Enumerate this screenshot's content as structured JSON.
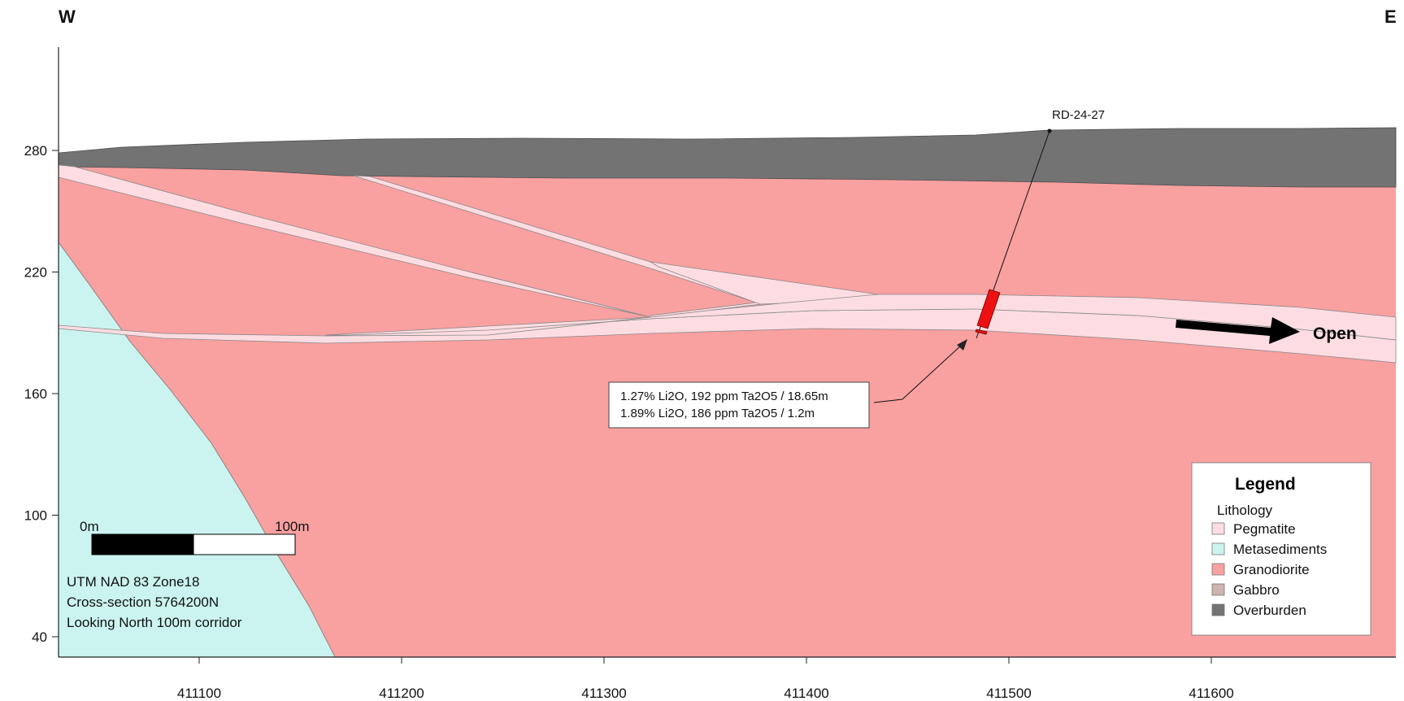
{
  "directions": {
    "west": "W",
    "east": "E"
  },
  "axes": {
    "y_ticks": [
      "280",
      "220",
      "160",
      "100",
      "40"
    ],
    "x_ticks": [
      "411100",
      "411200",
      "411300",
      "411400",
      "411500",
      "411600"
    ]
  },
  "drillhole": {
    "name": "RD-24-27"
  },
  "intercept": {
    "line1": "1.27% Li2O, 192 ppm Ta2O5 / 18.65m",
    "line2": "1.89% Li2O, 186 ppm Ta2O5 / 1.2m"
  },
  "open_label": "Open",
  "scale_bar": {
    "start": "0m",
    "end": "100m"
  },
  "projection": {
    "line1": "UTM NAD 83 Zone18",
    "line2": "Cross-section 5764200N",
    "line3": "Looking North 100m corridor"
  },
  "legend": {
    "title": "Legend",
    "subtitle": "Lithology",
    "items": [
      {
        "label": "Pegmatite",
        "color": "#fddde2"
      },
      {
        "label": "Metasediments",
        "color": "#cbf4f0"
      },
      {
        "label": "Granodiorite",
        "color": "#f9a0a0"
      },
      {
        "label": "Gabbro",
        "color": "#cdb4ad"
      },
      {
        "label": "Overburden",
        "color": "#737373"
      }
    ]
  },
  "colors": {
    "pegmatite": "#fddde2",
    "metasediments": "#cbf4f0",
    "granodiorite": "#f9a0a0",
    "overburden": "#737373",
    "mineralized": "#ee1111"
  }
}
